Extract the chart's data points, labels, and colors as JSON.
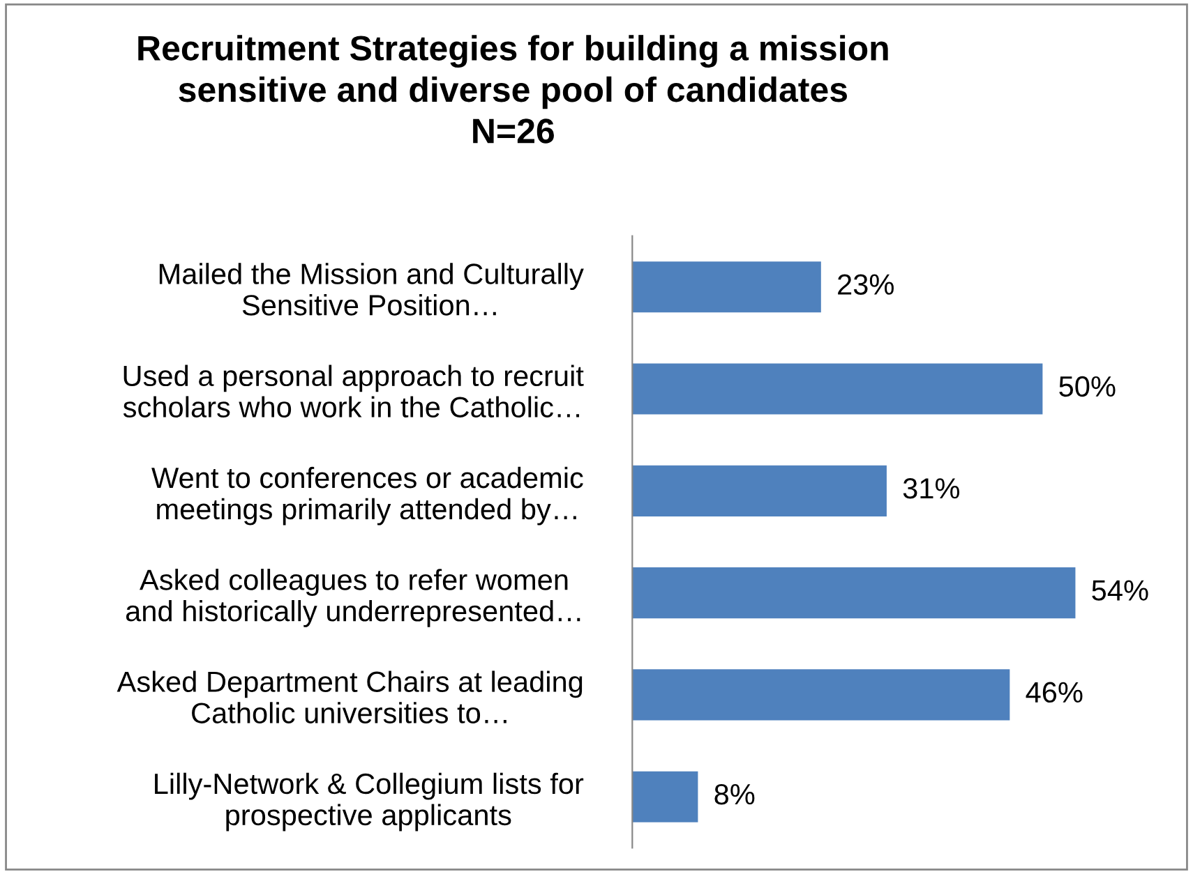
{
  "chart_data": {
    "type": "bar",
    "orientation": "horizontal",
    "title": "Recruitment Strategies for building a mission\nsensitive and diverse pool of candidates\nN=26",
    "categories": [
      "Mailed the Mission and Culturally\nSensitive Position…",
      "Used a personal approach to recruit\nscholars who work in the Catholic…",
      "Went to conferences or academic\nmeetings primarily attended by…",
      "Asked colleagues to refer women\nand historically underrepresented…",
      "Asked Department Chairs at leading\nCatholic universities to…",
      "Lilly-Network & Collegium lists for\nprospective applicants"
    ],
    "values": [
      23,
      50,
      31,
      54,
      46,
      8
    ],
    "value_labels": [
      "23%",
      "50%",
      "31%",
      "54%",
      "46%",
      "8%"
    ],
    "color": "#4f81bd",
    "tick_labels": "y",
    "grid": false,
    "legend": false
  }
}
